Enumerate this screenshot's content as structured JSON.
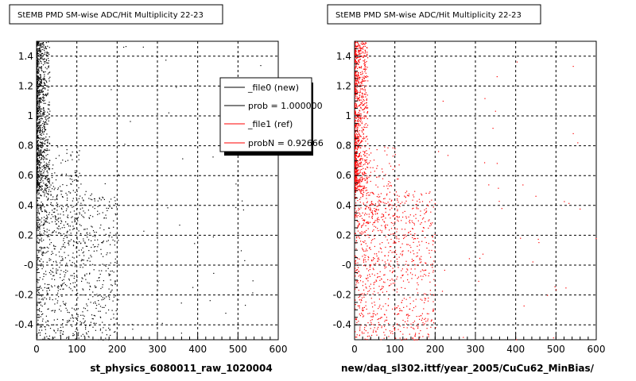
{
  "chart_data": [
    {
      "type": "scatter",
      "title": "StEMB PMD SM-wise ADC/Hit Multiplicity 22-23",
      "xlabel": "st_physics_6080011_raw_1020004",
      "ylabel": "",
      "xlim": [
        0,
        600
      ],
      "ylim": [
        -0.5,
        1.5
      ],
      "x_ticks": [
        "0",
        "100",
        "200",
        "300",
        "400",
        "500",
        "600"
      ],
      "y_ticks": [
        "-0.4",
        "-0.2",
        "-0",
        "0.2",
        "0.4",
        "0.6",
        "0.8",
        "1",
        "1.2",
        "1.4"
      ],
      "grid": true,
      "series_color": "#000000",
      "legend": [
        {
          "label": "_file0 (new)",
          "color": "#000000"
        },
        {
          "label": "prob = 1.000000",
          "color": "#000000"
        },
        {
          "label": "_file1 (ref)",
          "color": "#ff0000"
        },
        {
          "label": "probN = 0.92666",
          "color": "#ff0000"
        }
      ]
    },
    {
      "type": "scatter",
      "title": "StEMB PMD SM-wise ADC/Hit Multiplicity 22-23",
      "xlabel": "new/daq_sl302.ittf/year_2005/CuCu62_MinBias/",
      "ylabel": "",
      "xlim": [
        0,
        600
      ],
      "ylim": [
        -0.5,
        1.5
      ],
      "x_ticks": [
        "0",
        "100",
        "200",
        "300",
        "400",
        "500",
        "600"
      ],
      "y_ticks": [
        "-0.4",
        "-0.2",
        "-0",
        "0.2",
        "0.4",
        "0.6",
        "0.8",
        "1",
        "1.2",
        "1.4"
      ],
      "grid": true,
      "series_color": "#ff0000"
    }
  ]
}
